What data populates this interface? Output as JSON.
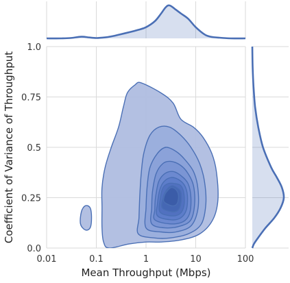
{
  "chart_data": {
    "type": "joint-kde",
    "title": "",
    "xlabel": "Mean Throughput (Mbps)",
    "ylabel": "Coefficient of Variance of Throughput",
    "x_scale": "log",
    "xlim": [
      0.01,
      100
    ],
    "ylim": [
      0.0,
      1.0
    ],
    "x_ticks": [
      {
        "value": 0.01,
        "label": "0.01"
      },
      {
        "value": 0.1,
        "label": "0.1"
      },
      {
        "value": 1,
        "label": "1"
      },
      {
        "value": 10,
        "label": "10"
      },
      {
        "value": 100,
        "label": "100"
      }
    ],
    "y_ticks": [
      {
        "value": 0.0,
        "label": "0.0"
      },
      {
        "value": 0.25,
        "label": "0.25"
      },
      {
        "value": 0.5,
        "label": "0.5"
      },
      {
        "value": 0.75,
        "label": "0.75"
      },
      {
        "value": 1.0,
        "label": "1.0"
      }
    ],
    "grid": true,
    "color": "#4a6fb5",
    "fill_levels": [
      "#afbde0",
      "#9aaedc",
      "#8aa1d8",
      "#7a95d4",
      "#6b88d0",
      "#5d7cc9",
      "#5071bf",
      "#4566b3",
      "#3b5ca8"
    ],
    "contours": [
      {
        "level": 1,
        "points": [
          [
            0.18,
            0.0
          ],
          [
            0.45,
            0.02
          ],
          [
            1.0,
            0.03
          ],
          [
            2.0,
            0.03
          ],
          [
            5.0,
            0.04
          ],
          [
            12.0,
            0.07
          ],
          [
            22.0,
            0.14
          ],
          [
            28.0,
            0.24
          ],
          [
            26.0,
            0.38
          ],
          [
            21.0,
            0.47
          ],
          [
            14.0,
            0.55
          ],
          [
            9.0,
            0.6
          ],
          [
            5.0,
            0.64
          ],
          [
            3.5,
            0.72
          ],
          [
            2.0,
            0.77
          ],
          [
            0.8,
            0.82
          ],
          [
            0.6,
            0.81
          ],
          [
            0.42,
            0.77
          ],
          [
            0.35,
            0.7
          ],
          [
            0.28,
            0.6
          ],
          [
            0.2,
            0.5
          ],
          [
            0.15,
            0.4
          ],
          [
            0.13,
            0.3
          ],
          [
            0.13,
            0.2
          ],
          [
            0.13,
            0.1
          ],
          [
            0.14,
            0.03
          ]
        ]
      },
      {
        "level": 2,
        "points": [
          [
            0.7,
            0.07
          ],
          [
            1.5,
            0.05
          ],
          [
            3.0,
            0.05
          ],
          [
            7.0,
            0.07
          ],
          [
            13.0,
            0.12
          ],
          [
            16.0,
            0.22
          ],
          [
            15.0,
            0.33
          ],
          [
            12.0,
            0.42
          ],
          [
            8.0,
            0.5
          ],
          [
            5.0,
            0.56
          ],
          [
            3.0,
            0.6
          ],
          [
            1.8,
            0.6
          ],
          [
            1.2,
            0.56
          ],
          [
            0.9,
            0.47
          ],
          [
            0.8,
            0.37
          ],
          [
            0.75,
            0.26
          ],
          [
            0.72,
            0.15
          ]
        ]
      },
      {
        "level": 3,
        "points": [
          [
            1.0,
            0.1
          ],
          [
            2.0,
            0.08
          ],
          [
            4.0,
            0.08
          ],
          [
            8.0,
            0.11
          ],
          [
            11.0,
            0.19
          ],
          [
            11.0,
            0.3
          ],
          [
            9.0,
            0.38
          ],
          [
            6.0,
            0.44
          ],
          [
            4.0,
            0.48
          ],
          [
            2.5,
            0.5
          ],
          [
            1.7,
            0.47
          ],
          [
            1.2,
            0.4
          ],
          [
            1.05,
            0.3
          ],
          [
            1.0,
            0.2
          ]
        ]
      },
      {
        "level": 4,
        "points": [
          [
            1.3,
            0.12
          ],
          [
            2.5,
            0.1
          ],
          [
            5.0,
            0.11
          ],
          [
            8.0,
            0.14
          ],
          [
            9.5,
            0.22
          ],
          [
            9.0,
            0.31
          ],
          [
            7.0,
            0.37
          ],
          [
            5.0,
            0.41
          ],
          [
            3.2,
            0.43
          ],
          [
            2.2,
            0.42
          ],
          [
            1.6,
            0.37
          ],
          [
            1.35,
            0.28
          ],
          [
            1.3,
            0.2
          ]
        ]
      },
      {
        "level": 5,
        "points": [
          [
            1.5,
            0.14
          ],
          [
            3.0,
            0.12
          ],
          [
            5.5,
            0.13
          ],
          [
            7.5,
            0.17
          ],
          [
            8.0,
            0.25
          ],
          [
            7.0,
            0.32
          ],
          [
            5.0,
            0.36
          ],
          [
            3.5,
            0.38
          ],
          [
            2.4,
            0.37
          ],
          [
            1.8,
            0.33
          ],
          [
            1.55,
            0.25
          ],
          [
            1.5,
            0.19
          ]
        ]
      },
      {
        "level": 6,
        "points": [
          [
            1.7,
            0.16
          ],
          [
            3.2,
            0.14
          ],
          [
            5.0,
            0.15
          ],
          [
            6.5,
            0.19
          ],
          [
            6.8,
            0.26
          ],
          [
            6.0,
            0.31
          ],
          [
            4.5,
            0.34
          ],
          [
            3.2,
            0.35
          ],
          [
            2.3,
            0.33
          ],
          [
            1.9,
            0.29
          ],
          [
            1.7,
            0.22
          ]
        ]
      },
      {
        "level": 7,
        "points": [
          [
            1.9,
            0.18
          ],
          [
            3.2,
            0.16
          ],
          [
            4.8,
            0.17
          ],
          [
            5.8,
            0.21
          ],
          [
            5.8,
            0.27
          ],
          [
            5.0,
            0.31
          ],
          [
            3.8,
            0.32
          ],
          [
            2.8,
            0.32
          ],
          [
            2.2,
            0.3
          ],
          [
            1.95,
            0.25
          ]
        ]
      },
      {
        "level": 8,
        "points": [
          [
            2.1,
            0.2
          ],
          [
            3.3,
            0.18
          ],
          [
            4.5,
            0.19
          ],
          [
            5.1,
            0.23
          ],
          [
            5.0,
            0.28
          ],
          [
            4.2,
            0.3
          ],
          [
            3.3,
            0.31
          ],
          [
            2.6,
            0.29
          ],
          [
            2.2,
            0.25
          ]
        ]
      },
      {
        "level": 9,
        "points": [
          [
            2.3,
            0.23
          ],
          [
            3.3,
            0.21
          ],
          [
            4.2,
            0.22
          ],
          [
            4.5,
            0.26
          ],
          [
            4.0,
            0.29
          ],
          [
            3.2,
            0.3
          ],
          [
            2.6,
            0.28
          ],
          [
            2.35,
            0.26
          ]
        ]
      },
      {
        "level": 1,
        "points": [
          [
            0.06,
            0.09
          ],
          [
            0.075,
            0.1
          ],
          [
            0.08,
            0.15
          ],
          [
            0.075,
            0.2
          ],
          [
            0.06,
            0.21
          ],
          [
            0.05,
            0.18
          ],
          [
            0.048,
            0.12
          ]
        ]
      }
    ],
    "marginal_x": {
      "x": [
        0.01,
        0.02,
        0.03,
        0.05,
        0.07,
        0.1,
        0.15,
        0.2,
        0.3,
        0.5,
        0.7,
        1.0,
        1.5,
        2.0,
        2.5,
        3.0,
        4.0,
        5.0,
        7.0,
        10.0,
        15.0,
        20.0,
        30.0,
        50.0,
        100.0
      ],
      "density": [
        0.0,
        0.0,
        0.01,
        0.05,
        0.03,
        0.01,
        0.03,
        0.06,
        0.12,
        0.2,
        0.26,
        0.34,
        0.52,
        0.75,
        0.95,
        1.0,
        0.87,
        0.76,
        0.6,
        0.34,
        0.12,
        0.05,
        0.02,
        0.0,
        0.0
      ]
    },
    "marginal_y": {
      "y": [
        0.0,
        0.02,
        0.05,
        0.1,
        0.15,
        0.2,
        0.25,
        0.3,
        0.35,
        0.4,
        0.5,
        0.6,
        0.7,
        0.8,
        0.9,
        1.0
      ],
      "density": [
        0.0,
        0.05,
        0.18,
        0.42,
        0.7,
        0.9,
        1.0,
        0.94,
        0.78,
        0.6,
        0.34,
        0.19,
        0.09,
        0.04,
        0.01,
        0.0
      ]
    }
  }
}
